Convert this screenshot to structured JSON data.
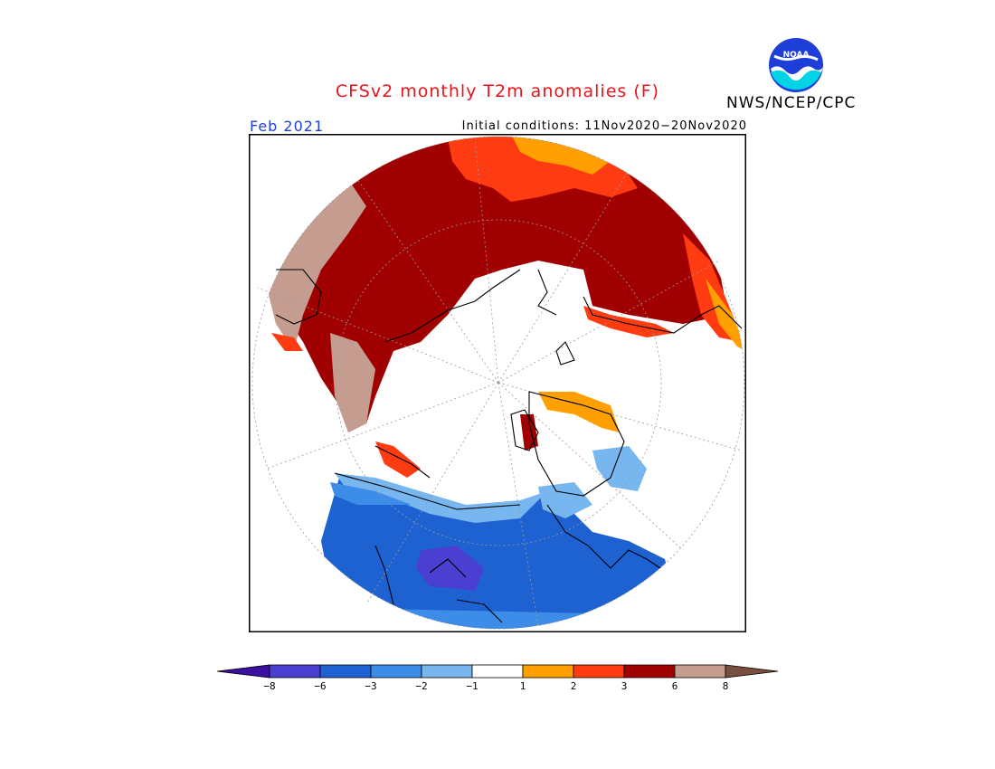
{
  "title": "CFSv2 monthly T2m anomalies (F)",
  "valid_month": "Feb 2021",
  "initial_conditions": "Initial conditions: 11Nov2020−20Nov2020",
  "organization": "NWS/NCEP/CPC",
  "logo_text": "NOAA",
  "map": {
    "projection": "north-polar-stereographic",
    "variable": "2m temperature anomaly",
    "units": "F"
  },
  "legend": {
    "tick_labels": [
      "−8",
      "−6",
      "−3",
      "−2",
      "−1",
      "1",
      "2",
      "3",
      "6",
      "8"
    ],
    "colors": [
      "#3d0fa0",
      "#4a3fd0",
      "#1e62d2",
      "#3c8ce8",
      "#78b6f0",
      "#ffffff",
      "#ffa000",
      "#ff3b12",
      "#a00000",
      "#c49d90",
      "#7a4e3e"
    ]
  }
}
